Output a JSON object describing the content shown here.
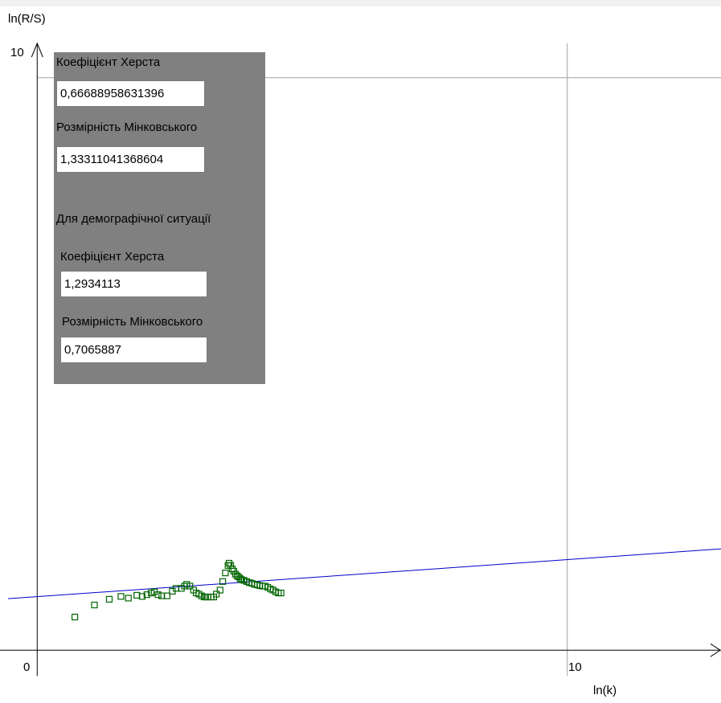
{
  "chart_data": {
    "type": "scatter",
    "ylabel": "ln(R/S)",
    "xlabel": "ln(k)",
    "xlim": [
      -0.55,
      12.9
    ],
    "ylim": [
      -0.08,
      10.6
    ],
    "x_ticks": [
      {
        "value": 0,
        "label": "0"
      },
      {
        "value": 10,
        "label": "10"
      }
    ],
    "y_ticks": [
      {
        "value": 10,
        "label": "10"
      }
    ],
    "grid": {
      "x": [
        10
      ],
      "y": [
        10
      ]
    },
    "points_color": "#006400",
    "fit_line_color": "#0000cc",
    "fit_line": {
      "x": [
        -0.55,
        12.9
      ],
      "y": [
        0.9,
        1.77
      ]
    },
    "points": {
      "x": [
        0.71,
        1.08,
        1.36,
        1.58,
        1.72,
        1.88,
        1.98,
        2.07,
        2.15,
        2.21,
        2.28,
        2.35,
        2.45,
        2.55,
        2.62,
        2.72,
        2.78,
        2.82,
        2.88,
        2.95,
        3.0,
        3.05,
        3.1,
        3.15,
        3.18,
        3.22,
        3.28,
        3.33,
        3.38,
        3.45,
        3.5,
        3.55,
        3.6,
        3.62,
        3.65,
        3.68,
        3.71,
        3.74,
        3.77,
        3.8,
        3.83,
        3.86,
        3.9,
        3.95,
        4.0,
        4.05,
        4.1,
        4.15,
        4.2,
        4.25,
        4.3,
        4.35,
        4.4,
        4.45,
        4.5,
        4.55,
        4.6
      ],
      "y": [
        0.58,
        0.79,
        0.89,
        0.94,
        0.91,
        0.96,
        0.94,
        0.97,
        1.0,
        1.02,
        0.97,
        0.95,
        0.95,
        1.03,
        1.08,
        1.08,
        1.12,
        1.15,
        1.12,
        1.05,
        1.0,
        0.98,
        0.95,
        0.93,
        0.93,
        0.93,
        0.93,
        0.93,
        0.98,
        1.05,
        1.2,
        1.35,
        1.48,
        1.52,
        1.48,
        1.42,
        1.38,
        1.33,
        1.3,
        1.28,
        1.25,
        1.23,
        1.22,
        1.2,
        1.18,
        1.17,
        1.15,
        1.14,
        1.13,
        1.12,
        1.12,
        1.1,
        1.07,
        1.05,
        1.02,
        1.0,
        1.0
      ]
    }
  },
  "panel": {
    "hurst_label": "Коефіцієнт Херста",
    "hurst_value": "0,66688958631396",
    "minkowski_label": "Розмірність Мінковського",
    "minkowski_value": "1,33311041368604",
    "demo_heading": "Для демографічної ситуації",
    "demo_hurst_label": "Коефіцієнт Херста",
    "demo_hurst_value": "1,2934113",
    "demo_minkowski_label": "Розмірність Мінковського",
    "demo_minkowski_value": "0,7065887"
  }
}
